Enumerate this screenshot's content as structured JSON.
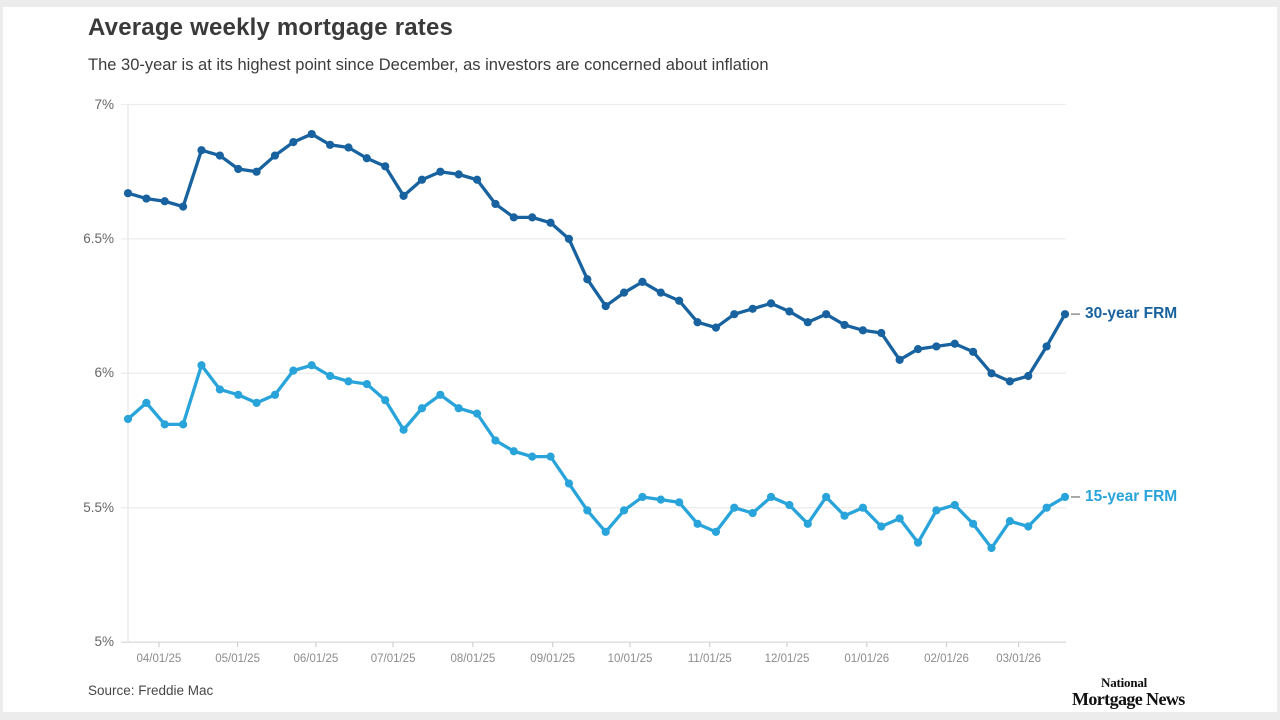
{
  "header": {
    "title": "Average weekly mortgage rates",
    "subtitle": "The 30-year is at its highest point since December, as investors are concerned about inflation"
  },
  "source": {
    "label": "Source: Freddie Mac"
  },
  "logo": {
    "line1": "National",
    "line2": "Mortgage News"
  },
  "colors": {
    "series_30yr": "#17629f",
    "series_15yr": "#29a4da",
    "gridline": "#ededed",
    "axis_line": "#d9d9d9",
    "left_axis_line": "#e6e6e6",
    "tick_mark": "#cfcfcf",
    "legend_dash": "#a0a0a0"
  },
  "chart_data": {
    "type": "line",
    "title": "Average weekly mortgage rates",
    "subtitle": "The 30-year is at its highest point since December, as investors are concerned about inflation",
    "x_tick_labels": [
      "04/01/25",
      "05/01/25",
      "06/01/25",
      "07/01/25",
      "08/01/25",
      "09/01/25",
      "10/01/25",
      "11/01/25",
      "12/01/25",
      "01/01/26",
      "02/01/26",
      "03/01/26"
    ],
    "y_tick_labels": [
      "7%",
      "6.5%",
      "6%",
      "5.5%",
      "5%"
    ],
    "y_tick_values": [
      7,
      6.5,
      6,
      5.5,
      5
    ],
    "ylim": [
      5,
      7
    ],
    "grid": "horizontal",
    "legend_position": "right-of-last-point",
    "marker": "circle",
    "series": [
      {
        "name": "30-year FRM",
        "color": "#17629f",
        "values": [
          6.67,
          6.65,
          6.64,
          6.62,
          6.83,
          6.81,
          6.76,
          6.75,
          6.81,
          6.86,
          6.89,
          6.85,
          6.84,
          6.8,
          6.77,
          6.66,
          6.72,
          6.75,
          6.74,
          6.72,
          6.63,
          6.58,
          6.58,
          6.56,
          6.5,
          6.35,
          6.25,
          6.3,
          6.34,
          6.3,
          6.27,
          6.19,
          6.17,
          6.22,
          6.24,
          6.26,
          6.23,
          6.19,
          6.22,
          6.18,
          6.16,
          6.15,
          6.05,
          6.09,
          6.1,
          6.11,
          6.08,
          6.0,
          5.97,
          5.99,
          6.1,
          6.22
        ]
      },
      {
        "name": "15-year FRM",
        "color": "#29a4da",
        "values": [
          5.83,
          5.89,
          5.81,
          5.81,
          6.03,
          5.94,
          5.92,
          5.89,
          5.92,
          6.01,
          6.03,
          5.99,
          5.97,
          5.96,
          5.9,
          5.79,
          5.87,
          5.92,
          5.87,
          5.85,
          5.75,
          5.71,
          5.69,
          5.69,
          5.59,
          5.49,
          5.41,
          5.49,
          5.54,
          5.53,
          5.52,
          5.44,
          5.41,
          5.5,
          5.48,
          5.54,
          5.51,
          5.44,
          5.54,
          5.47,
          5.5,
          5.43,
          5.46,
          5.37,
          5.49,
          5.51,
          5.44,
          5.35,
          5.45,
          5.43,
          5.5,
          5.54
        ]
      }
    ]
  }
}
